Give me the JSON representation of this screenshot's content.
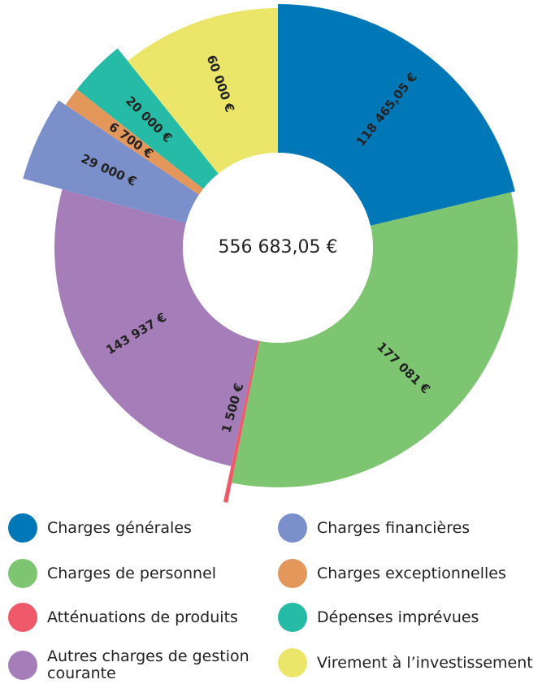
{
  "chart_data": {
    "type": "donut",
    "categories": [
      "Charges générales",
      "Charges de personnel",
      "Atténuations de produits",
      "Autres charges de gestion courante",
      "Charges financières",
      "Charges exceptionnelles",
      "Dépenses imprévues",
      "Virement à l’investissement"
    ],
    "values": [
      118465.05,
      177081,
      1500,
      143937,
      29000,
      6700,
      20000,
      60000
    ],
    "value_labels": [
      "118 465,05 €",
      "177 081 €",
      "1 500 €",
      "143 937 €",
      "29 000 €",
      "6 700 €",
      "20 000 €",
      "60 000 €"
    ],
    "colors": [
      "#0077b6",
      "#7dc570",
      "#ee5a6a",
      "#a57db8",
      "#7b8fcb",
      "#e3975a",
      "#26bba6",
      "#ebe56a"
    ],
    "total": 556683.05,
    "total_label": "556 683,05 €"
  }
}
